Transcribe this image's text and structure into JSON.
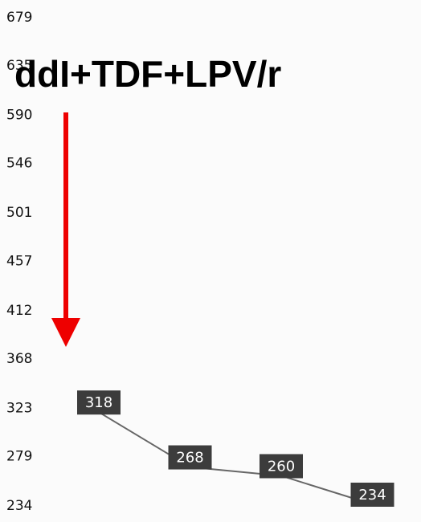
{
  "chart_data": {
    "type": "line",
    "annotation": "ddI+TDF+LPV/r",
    "categories": [
      null,
      null,
      null,
      null
    ],
    "values": [
      318,
      268,
      260,
      234
    ],
    "color": "#666666",
    "ylim": [
      234,
      679
    ],
    "yticks": [
      234,
      279,
      323,
      368,
      412,
      457,
      501,
      546,
      590,
      635,
      679
    ]
  }
}
